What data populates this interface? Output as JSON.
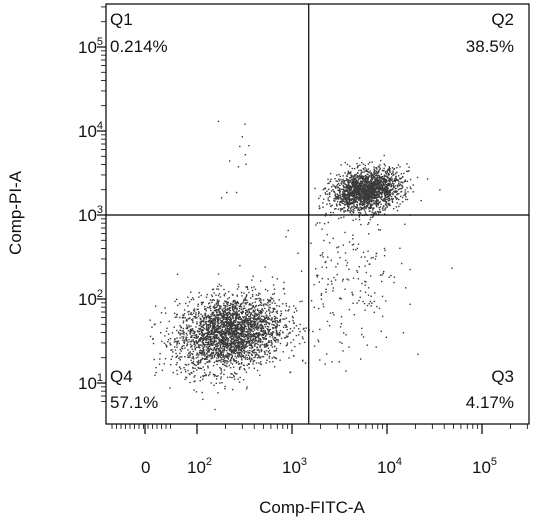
{
  "chart_data": {
    "type": "scatter",
    "xlabel": "Comp-FITC-A",
    "ylabel": "Comp-PI-A",
    "x_scale": "biexponential",
    "y_scale": "log",
    "xlim": [
      -100,
      250000
    ],
    "ylim": [
      5,
      200000
    ],
    "grid": false,
    "x_ticks": [
      {
        "base": "0",
        "exp": "",
        "value": 0
      },
      {
        "base": "10",
        "exp": "2",
        "value": 100
      },
      {
        "base": "10",
        "exp": "3",
        "value": 1000
      },
      {
        "base": "10",
        "exp": "4",
        "value": 10000
      },
      {
        "base": "10",
        "exp": "5",
        "value": 100000
      }
    ],
    "y_ticks": [
      {
        "base": "10",
        "exp": "1",
        "value": 10
      },
      {
        "base": "10",
        "exp": "2",
        "value": 100
      },
      {
        "base": "10",
        "exp": "3",
        "value": 1000
      },
      {
        "base": "10",
        "exp": "4",
        "value": 10000
      },
      {
        "base": "10",
        "exp": "5",
        "value": 100000
      }
    ],
    "gate": {
      "x": 1500,
      "y": 1000
    },
    "quadrants": [
      {
        "label": "Q1",
        "percent": "0.214%",
        "position": "top-left"
      },
      {
        "label": "Q2",
        "percent": "38.5%",
        "position": "top-right"
      },
      {
        "label": "Q3",
        "percent": "4.17%",
        "position": "bottom-right"
      },
      {
        "label": "Q4",
        "percent": "57.1%",
        "position": "bottom-left"
      }
    ],
    "populations": [
      {
        "name_ref": "Q4",
        "center_x": 220,
        "center_y": 40,
        "spread_x_decades": 0.28,
        "spread_y_decades": 0.22,
        "share": 0.571
      },
      {
        "name_ref": "Q2",
        "center_x": 6000,
        "center_y": 2000,
        "spread_x_decades": 0.18,
        "spread_y_decades": 0.12,
        "share": 0.385
      },
      {
        "name_ref": "Q3",
        "center_x": 4000,
        "center_y": 150,
        "spread_x_decades": 0.3,
        "spread_y_decades": 0.45,
        "share": 0.0417
      },
      {
        "name_ref": "Q1",
        "center_x": 300,
        "center_y": 5000,
        "spread_x_decades": 0.2,
        "spread_y_decades": 0.3,
        "share": 0.00214
      }
    ],
    "event_count": 5000,
    "point_color": "#3a3a3a",
    "line_color": "#000000"
  }
}
